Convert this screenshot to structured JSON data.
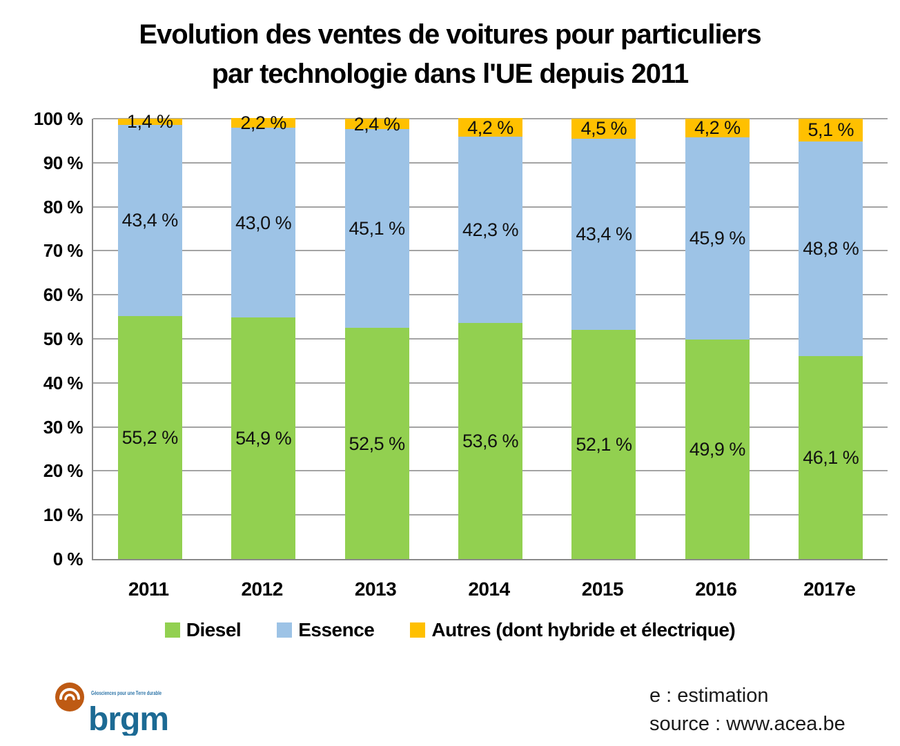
{
  "title": {
    "lines": [
      "Evolution des ventes de voitures pour particuliers",
      "par technologie dans l'UE depuis 2011"
    ]
  },
  "chart_data": {
    "type": "bar",
    "stacked": true,
    "title": "Evolution des ventes de voitures pour particuliers par technologie dans l'UE depuis 2011",
    "categories": [
      "2011",
      "2012",
      "2013",
      "2014",
      "2015",
      "2016",
      "2017e"
    ],
    "series": [
      {
        "name": "Diesel",
        "color": "#92D050",
        "values": [
          55.2,
          54.9,
          52.5,
          53.6,
          52.1,
          49.9,
          46.1
        ]
      },
      {
        "name": "Essence",
        "color": "#9DC3E6",
        "values": [
          43.4,
          43.0,
          45.1,
          42.3,
          43.4,
          45.9,
          48.8
        ]
      },
      {
        "name": "Autres (dont hybride et électrique)",
        "color": "#FFC000",
        "values": [
          1.4,
          2.2,
          2.4,
          4.2,
          4.5,
          4.2,
          5.1
        ]
      }
    ],
    "value_label_suffix": " %",
    "y_ticks": [
      "100 %",
      "90 %",
      "80 %",
      "70 %",
      "60 %",
      "50 %",
      "40 %",
      "30 %",
      "20 %",
      "10 %",
      "0 %"
    ],
    "ylim": [
      0,
      100
    ],
    "grid": true,
    "grid_color": "#A3A3A3",
    "axis_color": "#8A8A8A",
    "legend_position": "bottom"
  },
  "footer": {
    "estimation_note": "e : estimation",
    "source_note": "source : www.acea.be"
  },
  "logo": {
    "text": "brgm",
    "tagline": "Géosciences pour une Terre durable",
    "orange": "#BE5A13",
    "blue": "#1C6A94"
  }
}
